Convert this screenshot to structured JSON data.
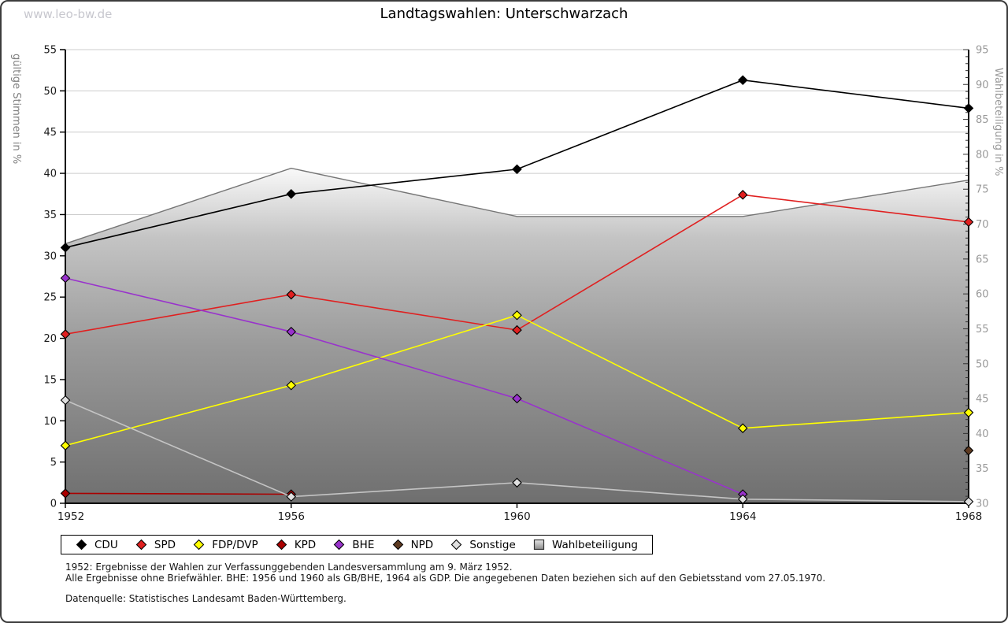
{
  "watermark": "www.leo-bw.de",
  "title": "Landtagswahlen: Unterschwarzach",
  "chart_data": {
    "type": "line",
    "title": "Landtagswahlen: Unterschwarzach",
    "x": [
      1952,
      1956,
      1960,
      1964,
      1968
    ],
    "x_tick_labels": [
      "1952",
      "1956",
      "1960",
      "1964",
      "1968"
    ],
    "y_axis_left": {
      "label": "gültige Stimmen in %",
      "min": 0,
      "max": 55,
      "tick_step": 5
    },
    "y_axis_right": {
      "label": "Wahlbeteiligung in %",
      "min": 30,
      "max": 95,
      "tick_step": 5,
      "minor_tick_step": 1
    },
    "grid": true,
    "legend_position": "bottom",
    "series": [
      {
        "name": "CDU",
        "axis": "left",
        "color": "#000000",
        "x": [
          1952,
          1956,
          1960,
          1964,
          1968
        ],
        "values": [
          31.0,
          37.5,
          40.5,
          51.3,
          47.9
        ]
      },
      {
        "name": "SPD",
        "axis": "left",
        "color": "#e02020",
        "x": [
          1952,
          1956,
          1960,
          1964,
          1968
        ],
        "values": [
          20.5,
          25.3,
          21.0,
          37.4,
          34.1
        ]
      },
      {
        "name": "FDP/DVP",
        "axis": "left",
        "color": "#ffff00",
        "x": [
          1952,
          1956,
          1960,
          1964,
          1968
        ],
        "values": [
          7.0,
          14.3,
          22.8,
          9.1,
          11.0
        ]
      },
      {
        "name": "KPD",
        "axis": "left",
        "color": "#aa0000",
        "x": [
          1952,
          1956
        ],
        "values": [
          1.2,
          1.1
        ]
      },
      {
        "name": "BHE",
        "axis": "left",
        "color": "#9933cc",
        "x": [
          1952,
          1956,
          1960,
          1964
        ],
        "values": [
          27.3,
          20.8,
          12.7,
          1.1
        ]
      },
      {
        "name": "NPD",
        "axis": "left",
        "color": "#5e3a21",
        "x": [
          1968
        ],
        "values": [
          6.4
        ]
      },
      {
        "name": "Sonstige",
        "axis": "left",
        "color": "#e0e0e0",
        "line_color": "#c4c4c4",
        "x": [
          1952,
          1956,
          1960,
          1964,
          1968
        ],
        "values": [
          12.5,
          0.8,
          2.5,
          0.5,
          0.2
        ]
      },
      {
        "name": "Wahlbeteiligung",
        "axis": "right",
        "type": "area",
        "color": "#757575",
        "x": [
          1952,
          1956,
          1960,
          1964,
          1968
        ],
        "values": [
          67.2,
          78.0,
          71.1,
          71.1,
          76.3
        ]
      }
    ],
    "style": {
      "grid_color": "#cccccc",
      "axis_color": "#000000",
      "left_tick_label_color": "#1a1a1a",
      "right_tick_label_color": "#999999",
      "left_axis_title_color": "#808080",
      "right_axis_title_color": "#999999",
      "area_gradient": [
        "#fdfdfd",
        "#c4c4c4",
        "#9a9a9a",
        "#6f6f6f"
      ]
    }
  },
  "footnotes": {
    "line1": "1952: Ergebnisse der Wahlen zur Verfassunggebenden Landesversammlung am 9. März 1952.",
    "line2": "Alle Ergebnisse ohne Briefwähler. BHE: 1956 und 1960 als GB/BHE, 1964 als GDP. Die angegebenen Daten beziehen sich auf den Gebietsstand vom 27.05.1970.",
    "source": "Datenquelle: Statistisches Landesamt Baden-Württemberg."
  }
}
